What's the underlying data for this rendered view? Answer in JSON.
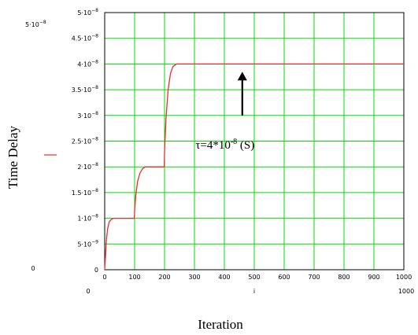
{
  "chart_data": {
    "type": "line",
    "xlabel": "Iteration",
    "ylabel": "Time Delay",
    "xlim": [
      0,
      1000
    ],
    "ylim": [
      0,
      5e-08
    ],
    "grid": true,
    "x_ticks": [
      "0",
      "100",
      "200",
      "300",
      "400",
      "500",
      "600",
      "700",
      "800",
      "900",
      "1000"
    ],
    "y_ticks": [
      {
        "value": 0,
        "mantissa": "0",
        "exp": ""
      },
      {
        "value": 5e-09,
        "mantissa": "5·10",
        "exp": "−9"
      },
      {
        "value": 1e-08,
        "mantissa": "1·10",
        "exp": "−8"
      },
      {
        "value": 1.5e-08,
        "mantissa": "1.5·10",
        "exp": "−8"
      },
      {
        "value": 2e-08,
        "mantissa": "2·10",
        "exp": "−8"
      },
      {
        "value": 2.5e-08,
        "mantissa": "2.5·10",
        "exp": "−8"
      },
      {
        "value": 3e-08,
        "mantissa": "3·10",
        "exp": "−8"
      },
      {
        "value": 3.5e-08,
        "mantissa": "3.5·10",
        "exp": "−8"
      },
      {
        "value": 4e-08,
        "mantissa": "4·10",
        "exp": "−8"
      },
      {
        "value": 4.5e-08,
        "mantissa": "4.5·10",
        "exp": "−8"
      },
      {
        "value": 5e-08,
        "mantissa": "5·10",
        "exp": "−8"
      }
    ],
    "y_axis_min_label": "0",
    "y_axis_max_label": {
      "mantissa": "5·10",
      "exp": "−8"
    },
    "x_axis_min_label": "0",
    "x_axis_max_label": "1000",
    "x_variable": "i",
    "series": [
      {
        "color": "#e53030",
        "x": [
          0,
          3,
          6,
          10,
          15,
          22,
          30,
          50,
          99,
          100,
          104,
          110,
          118,
          126,
          135,
          160,
          199,
          200,
          205,
          212,
          220,
          228,
          240,
          300,
          400,
          500,
          600,
          700,
          800,
          900,
          1000
        ],
        "y": [
          0,
          3e-09,
          6e-09,
          8e-09,
          9.3e-09,
          9.8e-09,
          1e-08,
          1e-08,
          1e-08,
          1.15e-08,
          1.45e-08,
          1.72e-08,
          1.88e-08,
          1.96e-08,
          2e-08,
          2e-08,
          2e-08,
          2.3e-08,
          2.95e-08,
          3.5e-08,
          3.82e-08,
          3.95e-08,
          4e-08,
          4e-08,
          4e-08,
          4e-08,
          4e-08,
          4e-08,
          4e-08,
          4e-08,
          4e-08
        ]
      }
    ],
    "annotation": {
      "text_before": "τ=4*10",
      "exp": "-8",
      "text_after": " (S)",
      "arrow_from": [
        460,
        3e-08
      ],
      "arrow_to": [
        460,
        3.85e-08
      ]
    }
  },
  "colors": {
    "grid": "#00dd00",
    "line": "#e53030",
    "axis": "#000000"
  }
}
